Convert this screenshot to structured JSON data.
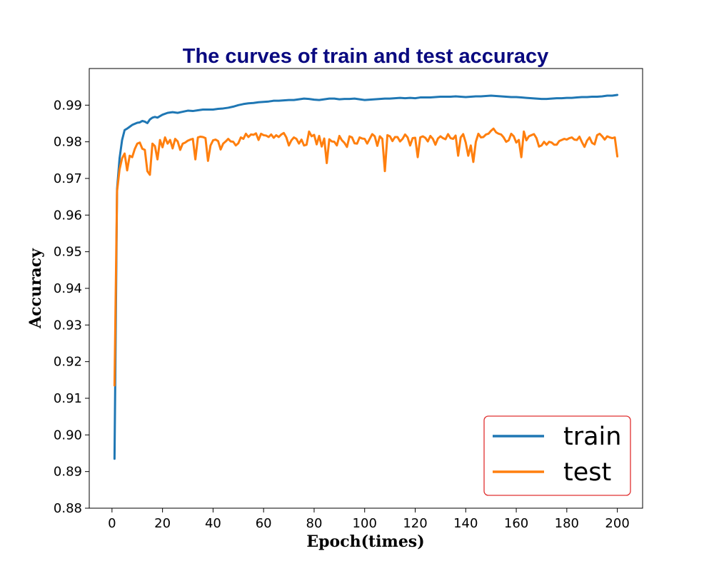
{
  "chart_data": {
    "type": "line",
    "title": "The curves of train and test accuracy",
    "xlabel": "Epoch(times)",
    "ylabel": "Accuracy",
    "xlim": [
      -9,
      210
    ],
    "ylim": [
      0.88,
      1.0
    ],
    "xticks": [
      0,
      20,
      40,
      60,
      80,
      100,
      120,
      140,
      160,
      180,
      200
    ],
    "yticks": [
      0.88,
      0.89,
      0.9,
      0.91,
      0.92,
      0.93,
      0.94,
      0.95,
      0.96,
      0.97,
      0.98,
      0.99
    ],
    "ytick_labels": [
      "0.88",
      "0.89",
      "0.90",
      "0.91",
      "0.92",
      "0.93",
      "0.94",
      "0.95",
      "0.96",
      "0.97",
      "0.98",
      "0.99"
    ],
    "legend_position": "lower-right",
    "grid": false,
    "series": [
      {
        "name": "train",
        "color": "#1f77b4",
        "x": [
          1,
          2,
          3,
          4,
          5,
          6,
          7,
          8,
          9,
          10,
          11,
          12,
          13,
          14,
          15,
          16,
          17,
          18,
          19,
          20,
          22,
          24,
          26,
          28,
          30,
          32,
          34,
          36,
          38,
          40,
          42,
          44,
          46,
          48,
          50,
          52,
          54,
          56,
          58,
          60,
          62,
          64,
          66,
          68,
          70,
          72,
          74,
          76,
          78,
          80,
          82,
          84,
          86,
          88,
          90,
          92,
          94,
          96,
          98,
          100,
          102,
          104,
          106,
          108,
          110,
          112,
          114,
          116,
          118,
          120,
          122,
          124,
          126,
          128,
          130,
          132,
          134,
          136,
          138,
          140,
          142,
          144,
          146,
          148,
          150,
          152,
          154,
          156,
          158,
          160,
          162,
          164,
          166,
          168,
          170,
          172,
          174,
          176,
          178,
          180,
          182,
          184,
          186,
          188,
          190,
          192,
          194,
          196,
          198,
          200
        ],
        "values": [
          0.8935,
          0.967,
          0.9755,
          0.9805,
          0.9832,
          0.9836,
          0.9841,
          0.9846,
          0.9849,
          0.9852,
          0.9853,
          0.9857,
          0.9855,
          0.9851,
          0.9861,
          0.9866,
          0.9868,
          0.9866,
          0.987,
          0.9874,
          0.9879,
          0.9881,
          0.9879,
          0.9882,
          0.9885,
          0.9884,
          0.9886,
          0.9888,
          0.9888,
          0.9888,
          0.989,
          0.9891,
          0.9893,
          0.9896,
          0.99,
          0.9903,
          0.9905,
          0.9906,
          0.9908,
          0.9909,
          0.991,
          0.9912,
          0.9912,
          0.9913,
          0.9914,
          0.9914,
          0.9916,
          0.9918,
          0.9917,
          0.9915,
          0.9914,
          0.9916,
          0.9918,
          0.9918,
          0.9916,
          0.9917,
          0.9917,
          0.9918,
          0.9916,
          0.9914,
          0.9915,
          0.9916,
          0.9917,
          0.9918,
          0.9918,
          0.9919,
          0.992,
          0.9919,
          0.992,
          0.9919,
          0.9921,
          0.9921,
          0.9921,
          0.9922,
          0.9923,
          0.9923,
          0.9923,
          0.9924,
          0.9923,
          0.9922,
          0.9923,
          0.9924,
          0.9924,
          0.9925,
          0.9926,
          0.9925,
          0.9924,
          0.9923,
          0.9922,
          0.9922,
          0.9921,
          0.992,
          0.9919,
          0.9918,
          0.9917,
          0.9917,
          0.9918,
          0.9919,
          0.9919,
          0.992,
          0.992,
          0.9921,
          0.9922,
          0.9922,
          0.9923,
          0.9923,
          0.9924,
          0.9926,
          0.9926,
          0.9928
        ]
      },
      {
        "name": "test",
        "color": "#ff7f0e",
        "x": [
          1,
          2,
          3,
          4,
          5,
          6,
          7,
          8,
          9,
          10,
          11,
          12,
          13,
          14,
          15,
          16,
          17,
          18,
          19,
          20,
          21,
          22,
          23,
          24,
          25,
          26,
          27,
          28,
          29,
          30,
          31,
          32,
          33,
          34,
          35,
          36,
          37,
          38,
          39,
          40,
          41,
          42,
          43,
          44,
          45,
          46,
          47,
          48,
          49,
          50,
          51,
          52,
          53,
          54,
          55,
          56,
          57,
          58,
          59,
          60,
          61,
          62,
          63,
          64,
          65,
          66,
          67,
          68,
          69,
          70,
          71,
          72,
          73,
          74,
          75,
          76,
          77,
          78,
          79,
          80,
          81,
          82,
          83,
          84,
          85,
          86,
          87,
          88,
          89,
          90,
          91,
          92,
          93,
          94,
          95,
          96,
          97,
          98,
          99,
          100,
          101,
          102,
          103,
          104,
          105,
          106,
          107,
          108,
          109,
          110,
          111,
          112,
          113,
          114,
          115,
          116,
          117,
          118,
          119,
          120,
          121,
          122,
          123,
          124,
          125,
          126,
          127,
          128,
          129,
          130,
          131,
          132,
          133,
          134,
          135,
          136,
          137,
          138,
          139,
          140,
          141,
          142,
          143,
          144,
          145,
          146,
          147,
          148,
          149,
          150,
          151,
          152,
          153,
          154,
          155,
          156,
          157,
          158,
          159,
          160,
          161,
          162,
          163,
          164,
          165,
          166,
          167,
          168,
          169,
          170,
          171,
          172,
          173,
          174,
          175,
          176,
          177,
          178,
          179,
          180,
          181,
          182,
          183,
          184,
          185,
          186,
          187,
          188,
          189,
          190,
          191,
          192,
          193,
          194,
          195,
          196,
          197,
          198,
          199,
          200
        ],
        "values": [
          0.9135,
          0.9665,
          0.9725,
          0.9755,
          0.9768,
          0.9722,
          0.9762,
          0.9758,
          0.978,
          0.9795,
          0.9798,
          0.9781,
          0.9778,
          0.972,
          0.971,
          0.9795,
          0.9788,
          0.9752,
          0.9805,
          0.9785,
          0.9812,
          0.9795,
          0.9805,
          0.9782,
          0.9808,
          0.9801,
          0.9778,
          0.9795,
          0.9798,
          0.9803,
          0.9806,
          0.9808,
          0.9752,
          0.9812,
          0.9814,
          0.9813,
          0.981,
          0.9748,
          0.979,
          0.9804,
          0.9806,
          0.9802,
          0.9779,
          0.9795,
          0.9801,
          0.9808,
          0.9801,
          0.98,
          0.979,
          0.9796,
          0.9812,
          0.9808,
          0.9822,
          0.9813,
          0.982,
          0.9819,
          0.9823,
          0.9805,
          0.9822,
          0.9818,
          0.9817,
          0.9813,
          0.982,
          0.9811,
          0.9818,
          0.9813,
          0.982,
          0.9824,
          0.9812,
          0.979,
          0.9804,
          0.9812,
          0.9808,
          0.9795,
          0.9806,
          0.979,
          0.9792,
          0.9828,
          0.9815,
          0.9819,
          0.9793,
          0.9816,
          0.9787,
          0.9809,
          0.9742,
          0.9807,
          0.9801,
          0.98,
          0.979,
          0.9816,
          0.9804,
          0.9797,
          0.9786,
          0.9815,
          0.9812,
          0.9796,
          0.9795,
          0.9812,
          0.9809,
          0.9808,
          0.9795,
          0.9808,
          0.9821,
          0.9815,
          0.9789,
          0.9815,
          0.9808,
          0.972,
          0.9818,
          0.9815,
          0.9802,
          0.9813,
          0.9813,
          0.9801,
          0.9808,
          0.982,
          0.9812,
          0.979,
          0.981,
          0.9811,
          0.9758,
          0.9812,
          0.9815,
          0.9811,
          0.9801,
          0.9816,
          0.9808,
          0.9792,
          0.9809,
          0.9815,
          0.981,
          0.9807,
          0.9821,
          0.981,
          0.9808,
          0.9817,
          0.9762,
          0.9812,
          0.9821,
          0.9798,
          0.9762,
          0.979,
          0.9745,
          0.98,
          0.9822,
          0.9812,
          0.9813,
          0.982,
          0.9822,
          0.983,
          0.9836,
          0.9826,
          0.9822,
          0.982,
          0.9812,
          0.98,
          0.9804,
          0.9822,
          0.9815,
          0.9798,
          0.9805,
          0.9758,
          0.9828,
          0.9804,
          0.9815,
          0.9818,
          0.9821,
          0.981,
          0.9787,
          0.979,
          0.98,
          0.9792,
          0.98,
          0.9798,
          0.9792,
          0.9792,
          0.9802,
          0.9805,
          0.9808,
          0.9806,
          0.981,
          0.9812,
          0.9806,
          0.9805,
          0.9814,
          0.9799,
          0.9786,
          0.9803,
          0.9812,
          0.9797,
          0.9793,
          0.9818,
          0.9822,
          0.9815,
          0.9806,
          0.9815,
          0.9812,
          0.981,
          0.9812,
          0.976
        ]
      }
    ]
  }
}
